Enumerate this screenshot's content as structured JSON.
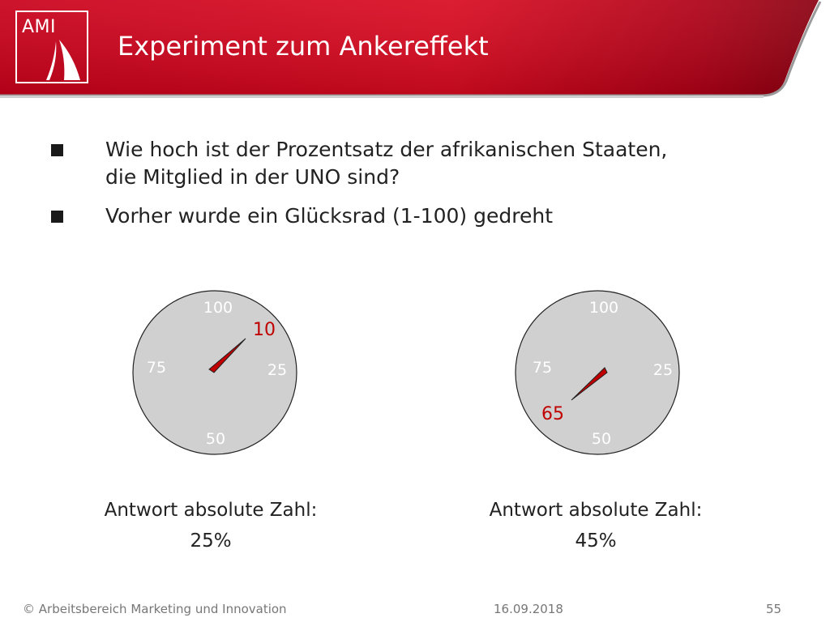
{
  "header": {
    "logo_text": "AMI",
    "title": "Experiment zum Ankereffekt"
  },
  "bullets": [
    {
      "text_line1": "Wie hoch ist der Prozentsatz der afrikanischen Staaten,",
      "text_line2": "die Mitglied in der UNO sind?"
    },
    {
      "text_line1": "Vorher wurde ein Glücksrad (1-100) gedreht"
    }
  ],
  "wheels": [
    {
      "ticks": {
        "top": "100",
        "right": "25",
        "bottom": "50",
        "left": "75"
      },
      "result": "10",
      "caption_label": "Antwort absolute Zahl:",
      "caption_value": "25%"
    },
    {
      "ticks": {
        "top": "100",
        "right": "25",
        "bottom": "50",
        "left": "75"
      },
      "result": "65",
      "caption_label": "Antwort absolute Zahl:",
      "caption_value": "45%"
    }
  ],
  "colors": {
    "brand_red": "#d0091c",
    "wheel_fill": "#d0d0d0",
    "needle_red": "#c00000"
  },
  "footer": {
    "copyright": "© Arbeitsbereich Marketing und Innovation",
    "date": "16.09.2018",
    "page": "55"
  }
}
